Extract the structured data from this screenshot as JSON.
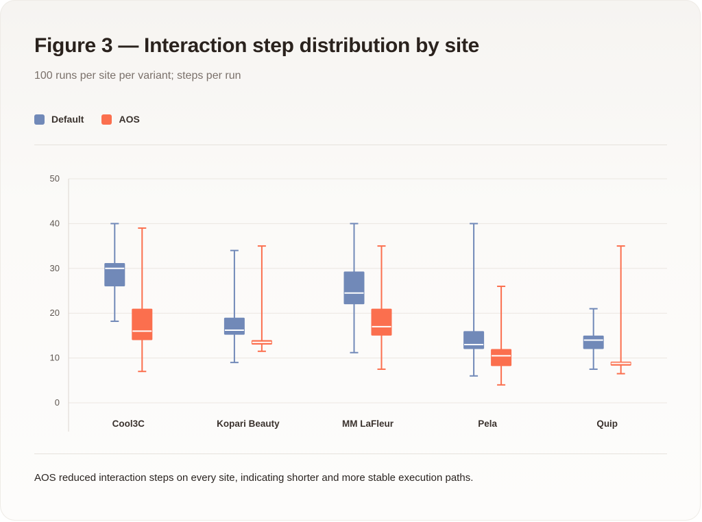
{
  "figure": {
    "title": "Figure 3 — Interaction step distribution by site",
    "subtitle": "100 runs per site per variant; steps per run",
    "caption": "AOS reduced interaction steps on every site, indicating shorter and more stable execution paths."
  },
  "legend": [
    {
      "label": "Default",
      "color": "#7189b8"
    },
    {
      "label": "AOS",
      "color": "#fb6f4e"
    }
  ],
  "chart_data": {
    "type": "box",
    "categories": [
      "Cool3C",
      "Kopari Beauty",
      "MM LaFleur",
      "Pela",
      "Quip"
    ],
    "ylim": [
      0,
      50
    ],
    "yticks": [
      0,
      10,
      20,
      30,
      40,
      50
    ],
    "grid": true,
    "legend_position": "top-left",
    "series": [
      {
        "name": "Default",
        "color": "#7189b8",
        "boxes": [
          {
            "min": 18.2,
            "q1": 26,
            "median": 30,
            "q3": 31.2,
            "max": 40
          },
          {
            "min": 9,
            "q1": 15.2,
            "median": 16.2,
            "q3": 19,
            "max": 34
          },
          {
            "min": 11.2,
            "q1": 22,
            "median": 24.5,
            "q3": 29.3,
            "max": 40
          },
          {
            "min": 6,
            "q1": 12,
            "median": 13,
            "q3": 16,
            "max": 40
          },
          {
            "min": 7.5,
            "q1": 12,
            "median": 14,
            "q3": 15,
            "max": 21
          }
        ]
      },
      {
        "name": "AOS",
        "color": "#fb6f4e",
        "boxes": [
          {
            "min": 7,
            "q1": 14,
            "median": 16,
            "q3": 21,
            "max": 39
          },
          {
            "min": 11.5,
            "q1": 13,
            "median": 13.5,
            "q3": 14,
            "max": 35
          },
          {
            "min": 7.5,
            "q1": 15,
            "median": 17,
            "q3": 21,
            "max": 35
          },
          {
            "min": 4,
            "q1": 8.2,
            "median": 10.5,
            "q3": 12,
            "max": 26
          },
          {
            "min": 6.5,
            "q1": 8.3,
            "median": 8.8,
            "q3": 9.2,
            "max": 35
          }
        ]
      }
    ]
  }
}
